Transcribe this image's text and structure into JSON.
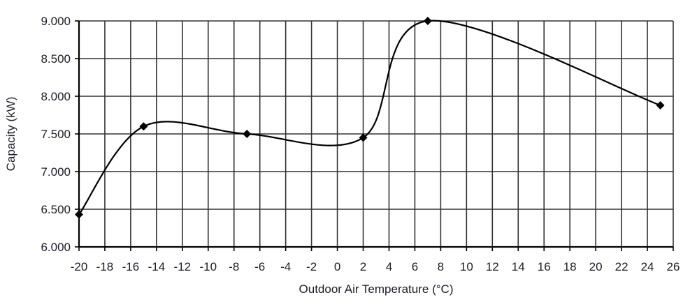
{
  "chart_data": {
    "type": "line",
    "title": "",
    "xlabel": "Outdoor Air Temperature (°C)",
    "ylabel": "Capacity (kW)",
    "xlim": [
      -20,
      26
    ],
    "ylim": [
      6.0,
      9.0
    ],
    "x_ticks": [
      -20,
      -18,
      -16,
      -14,
      -12,
      -10,
      -8,
      -6,
      -4,
      -2,
      0,
      2,
      4,
      6,
      8,
      10,
      12,
      14,
      16,
      18,
      20,
      22,
      24,
      26
    ],
    "x_tick_labels": [
      "-20",
      "-18",
      "-16",
      "-14",
      "-12",
      "-10",
      "-8",
      "-6",
      "-4",
      "-2",
      "0",
      "2",
      "4",
      "6",
      "8",
      "10",
      "12",
      "14",
      "16",
      "18",
      "20",
      "22",
      "24",
      "26"
    ],
    "y_ticks": [
      6.0,
      6.5,
      7.0,
      7.5,
      8.0,
      8.5,
      9.0
    ],
    "y_tick_labels": [
      "6.000",
      "6.500",
      "7.000",
      "7.500",
      "8.000",
      "8.500",
      "9.000"
    ],
    "grid": true,
    "smooth": true,
    "marker": "diamond",
    "series": [
      {
        "name": "Capacity",
        "color": "#000000",
        "x": [
          -20,
          -15,
          -7,
          2,
          7,
          25
        ],
        "y": [
          6.43,
          7.6,
          7.5,
          7.45,
          9.0,
          7.88
        ]
      }
    ]
  }
}
